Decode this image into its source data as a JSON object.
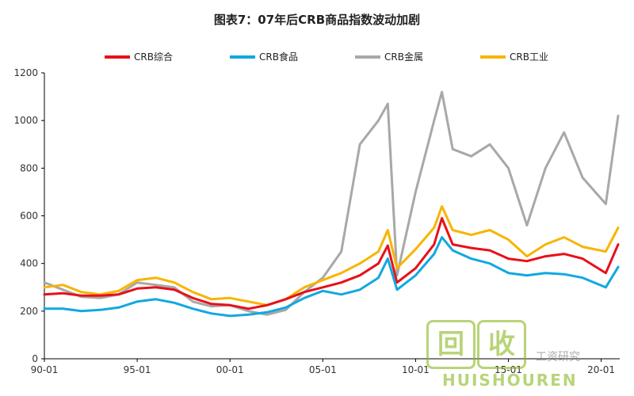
{
  "chart_data": {
    "type": "line",
    "title": "图表7：07年后CRB商品指数波动加剧",
    "xlabel": "",
    "ylabel": "",
    "x_ticks": [
      "90-01",
      "95-01",
      "00-01",
      "05-01",
      "10-01",
      "15-01",
      "20-01"
    ],
    "x_range": [
      "1990-01",
      "2020-12"
    ],
    "y_ticks": [
      0,
      200,
      400,
      600,
      800,
      1000,
      1200
    ],
    "ylim": [
      0,
      1200
    ],
    "grid": false,
    "legend_position": "top",
    "x": [
      "1990-01",
      "1991-01",
      "1992-01",
      "1993-01",
      "1994-01",
      "1995-01",
      "1996-01",
      "1997-01",
      "1998-01",
      "1999-01",
      "2000-01",
      "2001-01",
      "2002-01",
      "2003-01",
      "2004-01",
      "2005-01",
      "2006-01",
      "2007-01",
      "2008-01",
      "2008-07",
      "2009-01",
      "2010-01",
      "2011-01",
      "2011-06",
      "2012-01",
      "2013-01",
      "2014-01",
      "2015-01",
      "2016-01",
      "2017-01",
      "2018-01",
      "2019-01",
      "2020-04",
      "2020-12"
    ],
    "series": [
      {
        "name": "CRB综合",
        "color": "#e8101a",
        "values": [
          270,
          275,
          265,
          265,
          270,
          295,
          300,
          290,
          255,
          230,
          225,
          210,
          225,
          250,
          280,
          300,
          320,
          350,
          400,
          475,
          320,
          380,
          480,
          590,
          480,
          465,
          455,
          420,
          410,
          430,
          440,
          420,
          360,
          480
        ]
      },
      {
        "name": "CRB食品",
        "color": "#12a8e0",
        "values": [
          210,
          210,
          200,
          205,
          215,
          240,
          250,
          235,
          210,
          190,
          180,
          185,
          195,
          215,
          255,
          285,
          270,
          290,
          340,
          420,
          290,
          350,
          440,
          510,
          455,
          420,
          400,
          360,
          350,
          360,
          355,
          340,
          300,
          385
        ]
      },
      {
        "name": "CRB金属",
        "color": "#a8a8a8",
        "values": [
          320,
          290,
          260,
          255,
          270,
          320,
          310,
          300,
          240,
          220,
          225,
          200,
          185,
          205,
          280,
          340,
          450,
          900,
          1000,
          1070,
          350,
          700,
          1000,
          1120,
          880,
          850,
          900,
          800,
          560,
          800,
          950,
          760,
          650,
          1020
        ]
      },
      {
        "name": "CRB工业",
        "color": "#f7b500",
        "values": [
          300,
          310,
          280,
          270,
          285,
          330,
          340,
          320,
          280,
          250,
          255,
          240,
          225,
          250,
          300,
          330,
          360,
          400,
          450,
          540,
          380,
          460,
          550,
          640,
          540,
          520,
          540,
          500,
          430,
          480,
          510,
          470,
          450,
          550
        ]
      }
    ]
  },
  "watermark": {
    "char1": "回",
    "char2": "收",
    "brand": "HUISHOUREN",
    "side_text": "工资研究"
  }
}
